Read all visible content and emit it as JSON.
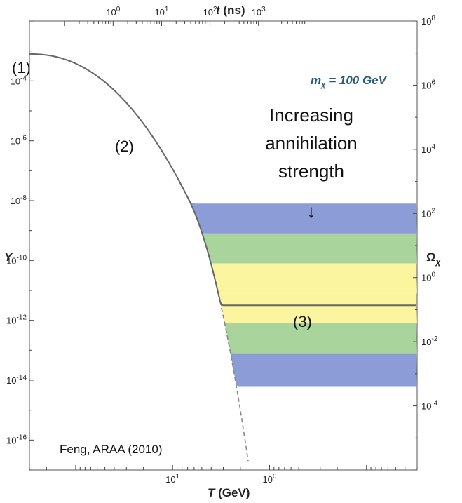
{
  "chart_data": {
    "type": "area",
    "title": "",
    "xlabel": "T (GeV)",
    "x2label": "t (ns)",
    "ylabel": "Y",
    "y2label": "Ωχ",
    "xscale": "log",
    "x_direction": "decreasing T to the right",
    "xlim_T_GeV": [
      300,
      0.03
    ],
    "ylim": [
      1e-17,
      0.01
    ],
    "y2lim": [
      1e-06,
      100000000.0
    ],
    "x_ticks": [
      {
        "label": "10",
        "exp": "1",
        "value": 10
      },
      {
        "label": "10",
        "exp": "0",
        "value": 1
      }
    ],
    "x2_ticks": [
      {
        "label": "10",
        "exp": "0",
        "value": 1
      },
      {
        "label": "10",
        "exp": "1",
        "value": 10
      },
      {
        "label": "10",
        "exp": "2",
        "value": 100
      },
      {
        "label": "10",
        "exp": "3",
        "value": 1000
      }
    ],
    "y_ticks": [
      {
        "label": "10",
        "exp": "-4",
        "value": -4
      },
      {
        "label": "10",
        "exp": "-6",
        "value": -6
      },
      {
        "label": "10",
        "exp": "-8",
        "value": -8
      },
      {
        "label": "10",
        "exp": "-10",
        "value": -10
      },
      {
        "label": "10",
        "exp": "-12",
        "value": -12
      },
      {
        "label": "10",
        "exp": "-14",
        "value": -14
      },
      {
        "label": "10",
        "exp": "-16",
        "value": -16
      }
    ],
    "y2_ticks": [
      {
        "label": "10",
        "exp": "8",
        "value": 8
      },
      {
        "label": "10",
        "exp": "6",
        "value": 6
      },
      {
        "label": "10",
        "exp": "4",
        "value": 4
      },
      {
        "label": "10",
        "exp": "2",
        "value": 2
      },
      {
        "label": "10",
        "exp": "0",
        "value": 0
      },
      {
        "label": "10",
        "exp": "-2",
        "value": -2
      },
      {
        "label": "10",
        "exp": "-4",
        "value": -4
      }
    ],
    "freeze_out_log10Y": [
      -8.1,
      -9.1,
      -10.1,
      -11.1,
      -12.1,
      -13.1,
      -14.2
    ],
    "central_freeze_out_log10Y": -11.5,
    "band_colors": [
      "#8c9cd6",
      "#a9d59c",
      "#fbf5a0"
    ],
    "equilibrium_color": "#888888",
    "series": [
      {
        "name": "equilibrium (dashed)",
        "style": "dashed"
      },
      {
        "name": "Y(T) central",
        "style": "solid"
      }
    ]
  },
  "labels": {
    "x_axis": "T",
    "x_axis_unit": " (GeV)",
    "x2_axis": "t",
    "x2_axis_unit": " (ns)",
    "y_axis": "Y",
    "y2_axis": "Ω",
    "y2_axis_sub": "χ",
    "mass_prefix": "m",
    "mass_sub": "χ",
    "mass_suffix": " = 100 GeV",
    "point1": "(1)",
    "point2": "(2)",
    "point3": "(3)",
    "arrow_line1": "Increasing",
    "arrow_line2": "annihilation",
    "arrow_line3": "strength",
    "arrow_glyph": "↓",
    "citation": "Feng, ARAA (2010)"
  }
}
